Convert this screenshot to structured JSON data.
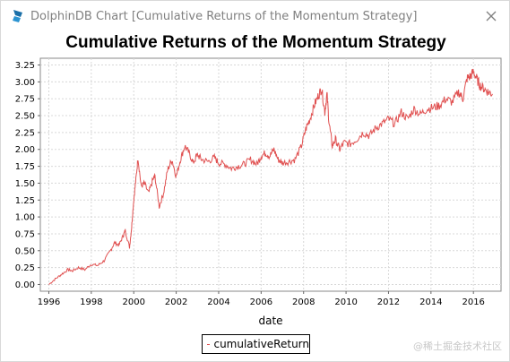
{
  "window": {
    "title": "DolphinDB Chart [Cumulative Returns of the Momentum Strategy]",
    "app_icon": "dolphindb-logo-icon",
    "close_icon": "close-icon"
  },
  "watermark": "@稀土掘金技术社区",
  "chart_data": {
    "type": "line",
    "title": "Cumulative Returns of the Momentum Strategy",
    "xlabel": "date",
    "ylabel": "",
    "xlim": [
      1995.6,
      2017.3
    ],
    "ylim": [
      -0.1,
      3.35
    ],
    "x_ticks": [
      "1996",
      "1998",
      "2000",
      "2002",
      "2004",
      "2006",
      "2008",
      "2010",
      "2012",
      "2014",
      "2016"
    ],
    "y_ticks": [
      "0.00",
      "0.25",
      "0.50",
      "0.75",
      "1.00",
      "1.25",
      "1.50",
      "1.75",
      "2.00",
      "2.25",
      "2.50",
      "2.75",
      "3.00",
      "3.25"
    ],
    "grid": true,
    "legend_position": "bottom",
    "series": [
      {
        "name": "cumulativeReturn",
        "color": "#e05050",
        "x": [
          1996.0,
          1996.3,
          1996.6,
          1996.9,
          1997.1,
          1997.4,
          1997.7,
          1998.0,
          1998.3,
          1998.6,
          1998.9,
          1999.1,
          1999.3,
          1999.5,
          1999.6,
          1999.8,
          1999.9,
          2000.0,
          2000.1,
          2000.2,
          2000.35,
          2000.5,
          2000.7,
          2000.9,
          2001.0,
          2001.2,
          2001.4,
          2001.6,
          2001.8,
          2002.0,
          2002.2,
          2002.4,
          2002.6,
          2002.8,
          2003.0,
          2003.2,
          2003.5,
          2003.8,
          2004.0,
          2004.3,
          2004.6,
          2004.9,
          2005.2,
          2005.5,
          2005.8,
          2006.0,
          2006.2,
          2006.4,
          2006.6,
          2006.8,
          2007.0,
          2007.3,
          2007.6,
          2007.9,
          2008.1,
          2008.3,
          2008.5,
          2008.7,
          2008.85,
          2009.0,
          2009.1,
          2009.2,
          2009.35,
          2009.5,
          2009.7,
          2009.9,
          2010.2,
          2010.5,
          2010.8,
          2011.1,
          2011.4,
          2011.7,
          2012.0,
          2012.3,
          2012.6,
          2012.9,
          2013.2,
          2013.5,
          2013.8,
          2014.1,
          2014.4,
          2014.7,
          2015.0,
          2015.3,
          2015.5,
          2015.7,
          2015.85,
          2016.0,
          2016.15,
          2016.3,
          2016.5,
          2016.7,
          2016.9
        ],
        "values": [
          0.0,
          0.08,
          0.15,
          0.22,
          0.2,
          0.25,
          0.22,
          0.3,
          0.28,
          0.35,
          0.5,
          0.62,
          0.58,
          0.72,
          0.8,
          0.55,
          0.85,
          1.25,
          1.55,
          1.88,
          1.45,
          1.5,
          1.35,
          1.55,
          1.6,
          1.15,
          1.35,
          1.7,
          1.85,
          1.6,
          1.85,
          2.05,
          1.95,
          1.8,
          1.92,
          1.85,
          1.82,
          1.88,
          1.8,
          1.78,
          1.72,
          1.75,
          1.78,
          1.85,
          1.78,
          1.9,
          1.95,
          1.9,
          2.0,
          1.85,
          1.8,
          1.82,
          1.85,
          2.05,
          2.3,
          2.45,
          2.65,
          2.8,
          2.9,
          2.55,
          2.82,
          2.4,
          2.05,
          2.15,
          2.0,
          2.1,
          2.08,
          2.15,
          2.25,
          2.2,
          2.32,
          2.38,
          2.45,
          2.38,
          2.55,
          2.45,
          2.6,
          2.52,
          2.6,
          2.62,
          2.65,
          2.75,
          2.7,
          2.85,
          2.75,
          3.05,
          3.08,
          3.15,
          3.05,
          2.95,
          2.9,
          2.85,
          2.82
        ]
      }
    ]
  }
}
